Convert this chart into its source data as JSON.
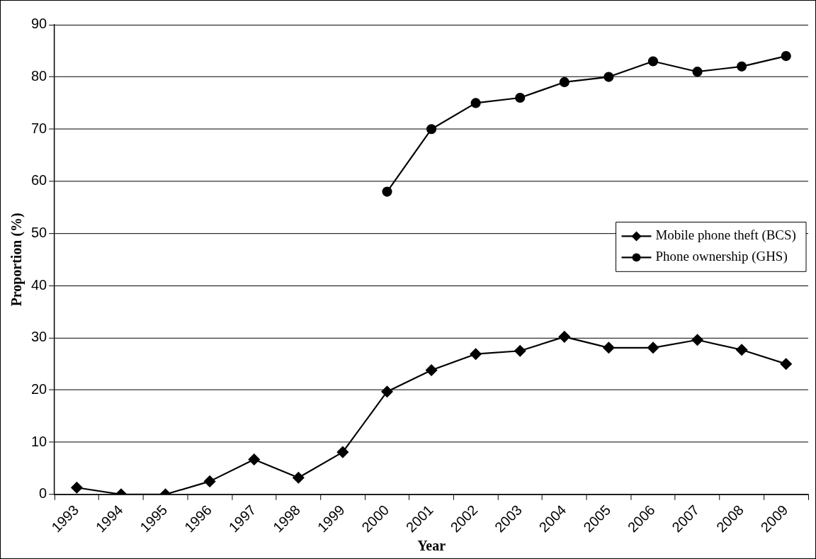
{
  "chart_data": {
    "type": "line",
    "xlabel": "Year",
    "ylabel": "Proportion (%)",
    "categories": [
      "1993",
      "1994",
      "1995",
      "1996",
      "1997",
      "1998",
      "1999",
      "2000",
      "2001",
      "2002",
      "2003",
      "2004",
      "2005",
      "2006",
      "2007",
      "2008",
      "2009"
    ],
    "series": [
      {
        "name": "Mobile phone theft (BCS)",
        "color": "#000000",
        "marker": "diamond",
        "values": [
          1.3,
          0,
          0,
          2.5,
          6.7,
          3.2,
          8.1,
          19.7,
          23.8,
          26.9,
          27.5,
          30.2,
          28.1,
          28.1,
          29.6,
          27.7,
          25.0
        ]
      },
      {
        "name": "Phone ownership (GHS)",
        "color": "#000000",
        "marker": "circle",
        "values": [
          null,
          null,
          null,
          null,
          null,
          null,
          null,
          58,
          70,
          75,
          76,
          79,
          80,
          83,
          81,
          82,
          84
        ]
      }
    ],
    "ylim": [
      0,
      90
    ],
    "yticks": [
      0,
      10,
      20,
      30,
      40,
      50,
      60,
      70,
      80,
      90
    ],
    "grid": "y",
    "legend": "right",
    "line_style": "solid"
  }
}
